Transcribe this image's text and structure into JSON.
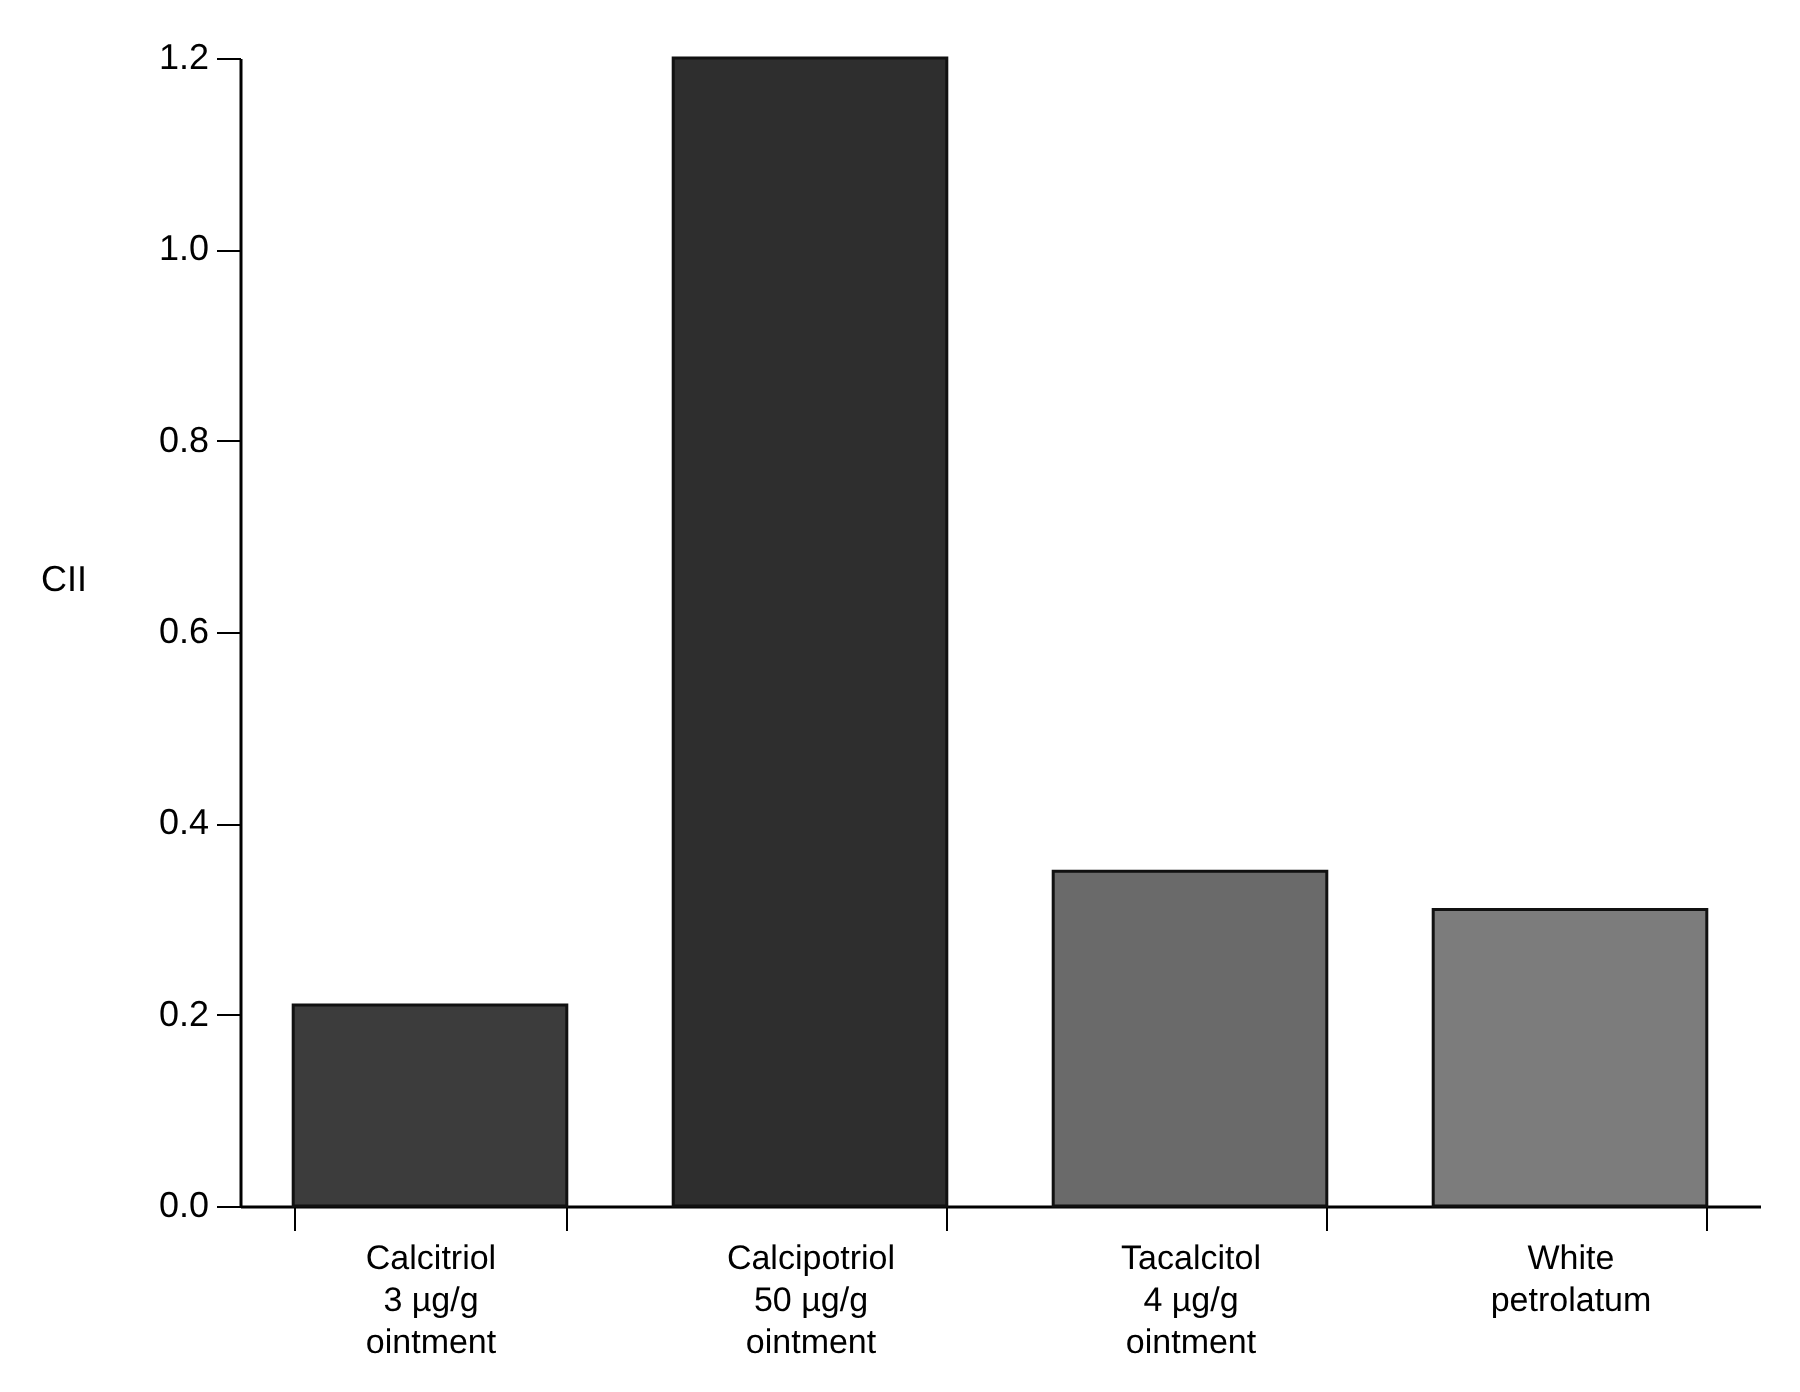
{
  "chart_data": {
    "type": "bar",
    "ylabel": "CII",
    "categories": [
      "Calcitriol\n3 µg/g\nointment",
      "Calcipotriol\n50 µg/g\nointment",
      "Tacalcitol\n4 µg/g\nointment",
      "White\npetrolatum"
    ],
    "values": [
      0.21,
      1.2,
      0.35,
      0.31
    ],
    "colors": [
      "#3c3c3c",
      "#2e2e2e",
      "#6a6a6a",
      "#7c7c7c"
    ],
    "ylim": [
      0,
      1.2
    ],
    "yticks": [
      {
        "value": 0,
        "label": "0.0"
      },
      0.2,
      0.4,
      0.6,
      0.8,
      {
        "value": 1,
        "label": "1.0"
      },
      1.2
    ],
    "grid": false
  }
}
